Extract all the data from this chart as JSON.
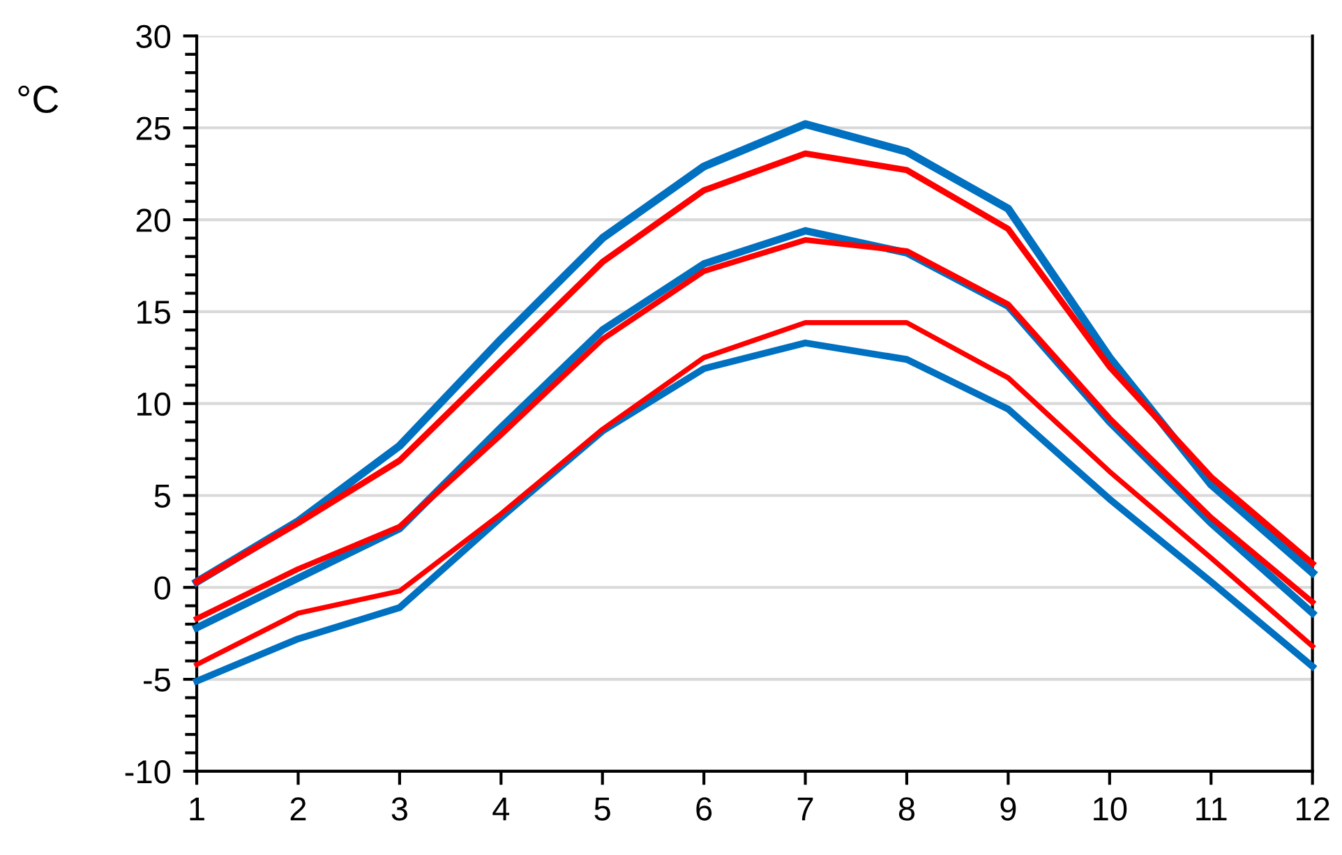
{
  "chart_data": {
    "type": "line",
    "ylabel": "°C",
    "x": [
      1,
      2,
      3,
      4,
      5,
      6,
      7,
      8,
      9,
      10,
      11,
      12
    ],
    "xlim": [
      1,
      12
    ],
    "xticks": [
      1,
      2,
      3,
      4,
      5,
      6,
      7,
      8,
      9,
      10,
      11,
      12
    ],
    "ylim": [
      -10,
      30
    ],
    "yticks": [
      -10,
      -5,
      0,
      5,
      10,
      15,
      20,
      25,
      30
    ],
    "grid": "y",
    "marker": "none",
    "line_style": "solid",
    "series": [
      {
        "color": "#0070c0",
        "values": [
          0.3,
          3.6,
          7.7,
          13.5,
          19.0,
          22.9,
          25.2,
          23.7,
          20.6,
          12.5,
          5.6,
          0.8
        ]
      },
      {
        "color": "#0070c0",
        "values": [
          -2.2,
          0.5,
          3.2,
          8.7,
          14.0,
          17.6,
          19.4,
          18.2,
          15.3,
          9.0,
          3.5,
          -1.4
        ]
      },
      {
        "color": "#0070c0",
        "values": [
          -5.1,
          -2.8,
          -1.1,
          3.8,
          8.5,
          11.9,
          13.3,
          12.4,
          9.7,
          4.8,
          0.3,
          -4.3
        ]
      },
      {
        "color": "#ff0000",
        "values": [
          0.3,
          3.5,
          6.9,
          12.3,
          17.7,
          21.6,
          23.6,
          22.7,
          19.5,
          12.0,
          6.0,
          1.3
        ]
      },
      {
        "color": "#ff0000",
        "values": [
          -1.7,
          1.0,
          3.3,
          8.3,
          13.5,
          17.2,
          18.9,
          18.3,
          15.4,
          9.2,
          3.8,
          -0.8
        ]
      },
      {
        "color": "#ff0000",
        "values": [
          -4.2,
          -1.4,
          -0.2,
          4.0,
          8.6,
          12.5,
          14.4,
          14.4,
          11.4,
          6.3,
          1.6,
          -3.2
        ]
      }
    ]
  }
}
